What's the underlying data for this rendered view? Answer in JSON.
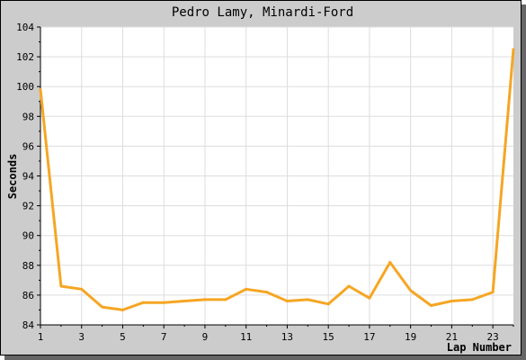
{
  "chart_data": {
    "type": "line",
    "title": "Pedro Lamy, Minardi-Ford",
    "xlabel": "Lap Number",
    "ylabel": "Seconds",
    "xlim": [
      1,
      24
    ],
    "ylim": [
      84,
      104
    ],
    "grid": true,
    "x_ticks": [
      1,
      3,
      5,
      7,
      9,
      11,
      13,
      15,
      17,
      19,
      21,
      23
    ],
    "y_ticks": [
      84,
      86,
      88,
      90,
      92,
      94,
      96,
      98,
      100,
      102,
      104
    ],
    "line_color": "#f5a623",
    "background_color": "#cccccc",
    "plot_background_color": "#ffffff",
    "grid_color": "#dddddd",
    "series": [
      {
        "x": [
          1,
          2,
          3,
          4,
          5,
          6,
          7,
          8,
          9,
          10,
          11,
          12,
          13,
          14,
          15,
          16,
          17,
          18,
          19,
          20,
          21,
          22,
          23,
          24
        ],
        "values": [
          99.8,
          86.6,
          86.4,
          85.2,
          85.0,
          85.5,
          85.5,
          85.6,
          85.7,
          85.7,
          86.4,
          86.2,
          85.6,
          85.7,
          85.4,
          86.6,
          85.8,
          88.2,
          86.3,
          85.3,
          85.6,
          85.7,
          86.2,
          102.5
        ]
      }
    ]
  }
}
